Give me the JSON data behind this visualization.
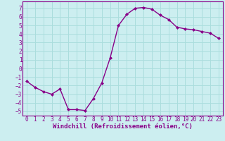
{
  "x": [
    0,
    1,
    2,
    3,
    4,
    5,
    6,
    7,
    8,
    9,
    10,
    11,
    12,
    13,
    14,
    15,
    16,
    17,
    18,
    19,
    20,
    21,
    22,
    23
  ],
  "y": [
    -1.5,
    -2.2,
    -2.7,
    -3.0,
    -2.4,
    -4.8,
    -4.8,
    -4.9,
    -3.5,
    -1.7,
    1.2,
    5.0,
    6.3,
    7.0,
    7.1,
    6.9,
    6.2,
    5.7,
    4.8,
    4.6,
    4.5,
    4.3,
    4.1,
    3.5
  ],
  "line_color": "#880088",
  "marker": "D",
  "marker_size": 2.0,
  "bg_color": "#cceef0",
  "grid_color": "#aadddd",
  "xlabel": "Windchill (Refroidissement éolien,°C)",
  "xlabel_fontsize": 6.5,
  "ylim": [
    -5.5,
    7.8
  ],
  "xlim": [
    -0.5,
    23.5
  ],
  "yticks": [
    -5,
    -4,
    -3,
    -2,
    -1,
    0,
    1,
    2,
    3,
    4,
    5,
    6,
    7
  ],
  "xticks": [
    0,
    1,
    2,
    3,
    4,
    5,
    6,
    7,
    8,
    9,
    10,
    11,
    12,
    13,
    14,
    15,
    16,
    17,
    18,
    19,
    20,
    21,
    22,
    23
  ],
  "tick_fontsize": 5.5,
  "line_width": 1.0
}
